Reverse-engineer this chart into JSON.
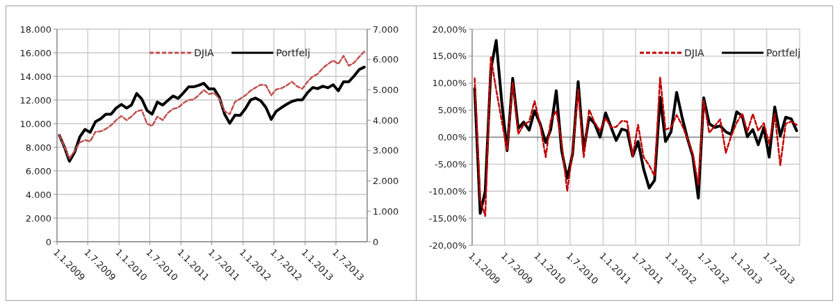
{
  "chart_data": [
    {
      "type": "line",
      "x": [
        "2009-01-15",
        "2009-02-15",
        "2009-03-15",
        "2009-04-15",
        "2009-05-15",
        "2009-06-15",
        "2009-07-15",
        "2009-08-15",
        "2009-09-15",
        "2009-10-15",
        "2009-11-15",
        "2009-12-15",
        "2010-01-15",
        "2010-02-15",
        "2010-03-15",
        "2010-04-15",
        "2010-05-15",
        "2010-06-15",
        "2010-07-15",
        "2010-08-15",
        "2010-09-15",
        "2010-10-15",
        "2010-11-15",
        "2010-12-15",
        "2011-01-15",
        "2011-02-15",
        "2011-03-15",
        "2011-04-15",
        "2011-05-15",
        "2011-06-15",
        "2011-07-15",
        "2011-08-15",
        "2011-09-15",
        "2011-10-15",
        "2011-11-15",
        "2011-12-15",
        "2012-01-15",
        "2012-02-15",
        "2012-03-15",
        "2012-04-15",
        "2012-05-15",
        "2012-06-15",
        "2012-07-15",
        "2012-08-15",
        "2012-09-15",
        "2012-10-15",
        "2012-11-15",
        "2012-12-15",
        "2013-01-15",
        "2013-02-15",
        "2013-03-15",
        "2013-04-15",
        "2013-05-15",
        "2013-06-15",
        "2013-07-15",
        "2013-08-15",
        "2013-09-15",
        "2013-10-15",
        "2013-11-15",
        "2013-12-15"
      ],
      "series": [
        {
          "name": "DJIA",
          "color": "#c0504d",
          "line_style": "dashed",
          "values": [
            9000,
            8000,
            7050,
            7700,
            8400,
            8600,
            8500,
            9300,
            9350,
            9550,
            9850,
            10300,
            10650,
            10300,
            10600,
            11050,
            11150,
            10000,
            9800,
            10600,
            10300,
            10900,
            11250,
            11350,
            11750,
            12000,
            12050,
            12400,
            12850,
            12500,
            12600,
            12100,
            11050,
            10800,
            11850,
            12100,
            12400,
            12800,
            13050,
            13300,
            13250,
            12400,
            12900,
            13000,
            13250,
            13550,
            13150,
            12950,
            13550,
            14000,
            14200,
            14700,
            15050,
            15350,
            15050,
            15750,
            14900,
            15150,
            15650,
            16100
          ]
        },
        {
          "name": "Portfelj",
          "color": "#000000",
          "line_style": "solid",
          "axis": "y2",
          "values": [
            3500,
            3100,
            2650,
            2950,
            3450,
            3700,
            3600,
            3950,
            4050,
            4200,
            4200,
            4400,
            4520,
            4400,
            4500,
            4880,
            4700,
            4320,
            4200,
            4600,
            4500,
            4650,
            4800,
            4720,
            4900,
            5100,
            5100,
            5150,
            5220,
            5030,
            5030,
            4750,
            4200,
            3900,
            4170,
            4160,
            4380,
            4670,
            4730,
            4640,
            4420,
            4030,
            4300,
            4420,
            4530,
            4620,
            4670,
            4670,
            4910,
            5080,
            5040,
            5120,
            5070,
            5170,
            4970,
            5270,
            5270,
            5450,
            5670,
            5750
          ]
        }
      ],
      "xlim": [
        "2009-01-01",
        "2014-01-01"
      ],
      "xticks": [
        {
          "value": "2009-01-01",
          "label": "1.1.2009"
        },
        {
          "value": "2009-07-01",
          "label": "1.7.2009"
        },
        {
          "value": "2010-01-01",
          "label": "1.1.2010"
        },
        {
          "value": "2010-07-01",
          "label": "1.7.2010"
        },
        {
          "value": "2011-01-01",
          "label": "1.1.2011"
        },
        {
          "value": "2011-07-01",
          "label": "1.7.2011"
        },
        {
          "value": "2012-01-01",
          "label": "1.1.2012"
        },
        {
          "value": "2012-07-01",
          "label": "1.7.2012"
        },
        {
          "value": "2013-01-01",
          "label": "1.1.2013"
        },
        {
          "value": "2013-07-01",
          "label": "1.7.2013"
        }
      ],
      "ylim": [
        0,
        18000
      ],
      "yticks": [
        {
          "value": 0,
          "label": "0"
        },
        {
          "value": 2000,
          "label": "2.000"
        },
        {
          "value": 4000,
          "label": "4.000"
        },
        {
          "value": 6000,
          "label": "6.000"
        },
        {
          "value": 8000,
          "label": "8.000"
        },
        {
          "value": 10000,
          "label": "10.000"
        },
        {
          "value": 12000,
          "label": "12.000"
        },
        {
          "value": 14000,
          "label": "14.000"
        },
        {
          "value": 16000,
          "label": "16.000"
        },
        {
          "value": 18000,
          "label": "18.000"
        }
      ],
      "y2lim": [
        0,
        7000
      ],
      "y2ticks": [
        {
          "value": 0,
          "label": "0"
        },
        {
          "value": 1000,
          "label": "1.000"
        },
        {
          "value": 2000,
          "label": "2.000"
        },
        {
          "value": 3000,
          "label": "3.000"
        },
        {
          "value": 4000,
          "label": "4.000"
        },
        {
          "value": 5000,
          "label": "5.000"
        },
        {
          "value": 6000,
          "label": "6.000"
        },
        {
          "value": 7000,
          "label": "7.000"
        }
      ],
      "grid": true,
      "legend": "top",
      "marker": "none"
    },
    {
      "type": "line",
      "x": [
        "2009-01-15",
        "2009-02-15",
        "2009-03-15",
        "2009-04-15",
        "2009-05-15",
        "2009-06-15",
        "2009-07-15",
        "2009-08-15",
        "2009-09-15",
        "2009-10-15",
        "2009-11-15",
        "2009-12-15",
        "2010-01-15",
        "2010-02-15",
        "2010-03-15",
        "2010-04-15",
        "2010-05-15",
        "2010-06-15",
        "2010-07-15",
        "2010-08-15",
        "2010-09-15",
        "2010-10-15",
        "2010-11-15",
        "2010-12-15",
        "2011-01-15",
        "2011-02-15",
        "2011-03-15",
        "2011-04-15",
        "2011-05-15",
        "2011-06-15",
        "2011-07-15",
        "2011-08-15",
        "2011-09-15",
        "2011-10-15",
        "2011-11-15",
        "2011-12-15",
        "2012-01-15",
        "2012-02-15",
        "2012-03-15",
        "2012-04-15",
        "2012-05-15",
        "2012-06-15",
        "2012-07-15",
        "2012-08-15",
        "2012-09-15",
        "2012-10-15",
        "2012-11-15",
        "2012-12-15",
        "2013-01-15",
        "2013-02-15",
        "2013-03-15",
        "2013-04-15",
        "2013-05-15",
        "2013-06-15",
        "2013-07-15",
        "2013-08-15",
        "2013-09-15",
        "2013-10-15",
        "2013-11-15",
        "2013-12-15"
      ],
      "series": [
        {
          "name": "DJIA",
          "color": "#c00000",
          "line_style": "dashed",
          "values": [
            10.9,
            -11.7,
            -14.6,
            14.8,
            8.8,
            3.0,
            -2.5,
            10.1,
            0.6,
            2.3,
            2.9,
            6.7,
            2.3,
            -3.7,
            3.1,
            4.9,
            -1.0,
            -10.0,
            -2.7,
            8.8,
            -3.7,
            5.1,
            2.7,
            1.2,
            3.5,
            1.8,
            1.9,
            3.0,
            2.9,
            -3.5,
            2.3,
            -3.7,
            -5.2,
            -7.2,
            11.1,
            1.4,
            1.8,
            4.1,
            2.3,
            -0.2,
            -3.1,
            -8.8,
            6.8,
            0.8,
            2.1,
            3.3,
            -2.9,
            0.2,
            2.7,
            4.4,
            1.0,
            4.3,
            1.2,
            2.6,
            -1.2,
            4.3,
            -5.2,
            2.5,
            2.9,
            2.3
          ]
        },
        {
          "name": "Portfelj",
          "color": "#000000",
          "line_style": "solid",
          "values": [
            9.0,
            -14.1,
            -10.0,
            12.5,
            17.9,
            6.5,
            -2.5,
            10.9,
            1.6,
            2.8,
            1.3,
            4.9,
            2.5,
            -1.0,
            1.4,
            8.6,
            -2.5,
            -7.6,
            -3.1,
            10.3,
            -2.5,
            3.7,
            2.5,
            0.0,
            4.5,
            1.8,
            -0.6,
            1.5,
            1.2,
            -3.5,
            -0.8,
            -5.9,
            -9.4,
            -8.0,
            7.4,
            -0.8,
            1.0,
            8.3,
            3.9,
            -0.2,
            -3.5,
            -11.3,
            7.3,
            2.5,
            1.8,
            2.1,
            1.0,
            0.5,
            4.7,
            3.9,
            0.1,
            1.4,
            -1.4,
            1.8,
            -3.7,
            5.6,
            0.2,
            3.7,
            3.4,
            1.2
          ]
        }
      ],
      "xlim": [
        "2009-01-01",
        "2014-01-01"
      ],
      "xticks": [
        {
          "value": "2009-01-01",
          "label": "1.1.2009"
        },
        {
          "value": "2009-07-01",
          "label": "1.7.2009"
        },
        {
          "value": "2010-01-01",
          "label": "1.1.2010"
        },
        {
          "value": "2010-07-01",
          "label": "1.7.2010"
        },
        {
          "value": "2011-01-01",
          "label": "1.1.2011"
        },
        {
          "value": "2011-07-01",
          "label": "1.7.2011"
        },
        {
          "value": "2012-01-01",
          "label": "1.1.2012"
        },
        {
          "value": "2012-07-01",
          "label": "1.7.2012"
        },
        {
          "value": "2013-01-01",
          "label": "1.1.2013"
        },
        {
          "value": "2013-07-01",
          "label": "1.7.2013"
        }
      ],
      "ylim": [
        -20,
        20
      ],
      "yticks": [
        {
          "value": -20,
          "label": "-20,00%"
        },
        {
          "value": -15,
          "label": "-15,00%"
        },
        {
          "value": -10,
          "label": "-10,00%"
        },
        {
          "value": -5,
          "label": "-5,00%"
        },
        {
          "value": 0,
          "label": "0,00%"
        },
        {
          "value": 5,
          "label": "5,00%"
        },
        {
          "value": 10,
          "label": "10,00%"
        },
        {
          "value": 15,
          "label": "15,00%"
        },
        {
          "value": 20,
          "label": "20,00%"
        }
      ],
      "grid": true,
      "legend": "top right",
      "marker": "none"
    }
  ]
}
